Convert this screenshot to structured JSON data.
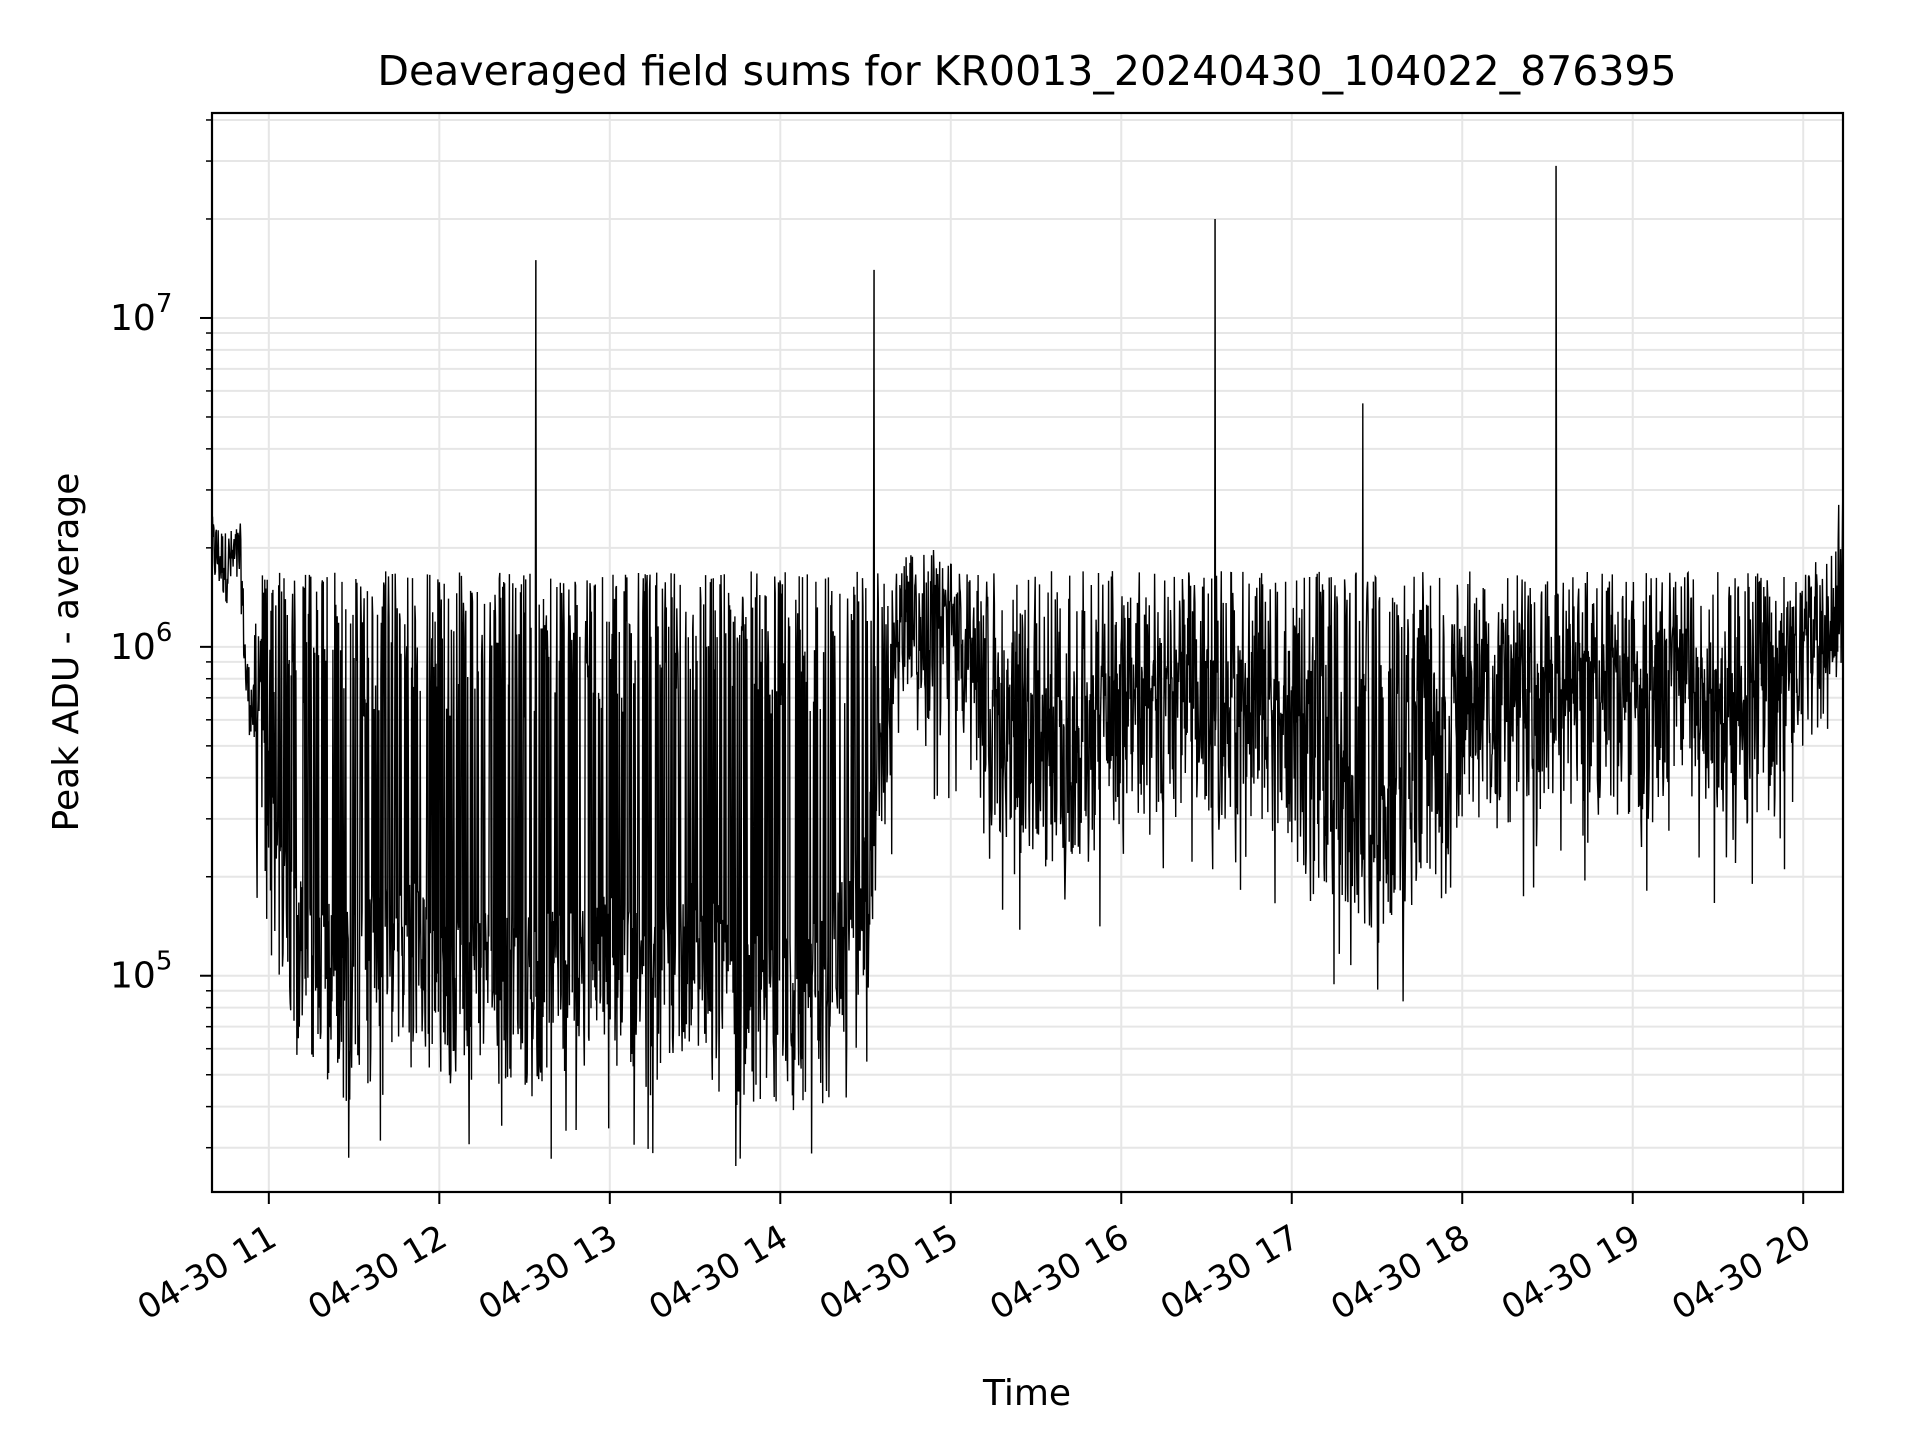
{
  "chart_data": {
    "type": "line",
    "title": "Deaveraged field sums for KR0013_20240430_104022_876395",
    "xlabel": "Time",
    "ylabel": "Peak ADU - average",
    "yscale": "log",
    "grid": true,
    "line_color": "#000000",
    "grid_color": "#e6e6e6",
    "x_tick_labels": [
      "04-30 11",
      "04-30 12",
      "04-30 13",
      "04-30 14",
      "04-30 15",
      "04-30 16",
      "04-30 17",
      "04-30 18",
      "04-30 19",
      "04-30 20"
    ],
    "x_tick_hours": [
      11,
      12,
      13,
      14,
      15,
      16,
      17,
      18,
      19,
      20
    ],
    "xlim": [
      "2024-04-30 10:40",
      "2024-04-30 20:14"
    ],
    "y_tick_labels": [
      {
        "base": "10",
        "exp": "5",
        "value": 100000
      },
      {
        "base": "10",
        "exp": "6",
        "value": 1000000
      },
      {
        "base": "10",
        "exp": "7",
        "value": 10000000
      }
    ],
    "ylim": [
      22000,
      42000000
    ],
    "series": [
      {
        "x": [
          "2024-04-30 10:40",
          "2024-04-30 10:45",
          "2024-04-30 10:50",
          "2024-04-30 10:52",
          "2024-04-30 10:55",
          "2024-04-30 11:00",
          "2024-04-30 11:03",
          "2024-04-30 11:06",
          "2024-04-30 11:10",
          "2024-04-30 11:15",
          "2024-04-30 11:20",
          "2024-04-30 11:30",
          "2024-04-30 11:40",
          "2024-04-30 11:50",
          "2024-04-30 12:00",
          "2024-04-30 12:15",
          "2024-04-30 12:30",
          "2024-04-30 12:34",
          "2024-04-30 12:45",
          "2024-04-30 13:00",
          "2024-04-30 13:15",
          "2024-04-30 13:30",
          "2024-04-30 13:45",
          "2024-04-30 14:00",
          "2024-04-30 14:15",
          "2024-04-30 14:30",
          "2024-04-30 14:33",
          "2024-04-30 14:40",
          "2024-04-30 14:45",
          "2024-04-30 15:00",
          "2024-04-30 15:15",
          "2024-04-30 15:30",
          "2024-04-30 15:45",
          "2024-04-30 16:00",
          "2024-04-30 16:15",
          "2024-04-30 16:30",
          "2024-04-30 16:33",
          "2024-04-30 16:45",
          "2024-04-30 17:00",
          "2024-04-30 17:15",
          "2024-04-30 17:25",
          "2024-04-30 17:30",
          "2024-04-30 17:45",
          "2024-04-30 18:00",
          "2024-04-30 18:15",
          "2024-04-30 18:30",
          "2024-04-30 18:33",
          "2024-04-30 18:45",
          "2024-04-30 19:00",
          "2024-04-30 19:15",
          "2024-04-30 19:30",
          "2024-04-30 19:45",
          "2024-04-30 20:00",
          "2024-04-30 20:10",
          "2024-04-30 20:14"
        ],
        "y": [
          2000000,
          1800000,
          1900000,
          800000,
          600000,
          300000,
          200000,
          150000,
          110000,
          100000,
          90000,
          90000,
          100000,
          110000,
          80000,
          90000,
          85000,
          15000000,
          90000,
          100000,
          80000,
          110000,
          80000,
          70000,
          80000,
          150000,
          14000000,
          800000,
          1200000,
          1000000,
          500000,
          400000,
          400000,
          500000,
          600000,
          500000,
          20000000,
          500000,
          400000,
          300000,
          5500000,
          200000,
          300000,
          500000,
          600000,
          500000,
          29000000,
          600000,
          500000,
          700000,
          500000,
          500000,
          900000,
          1100000,
          1800000
        ]
      }
    ]
  }
}
